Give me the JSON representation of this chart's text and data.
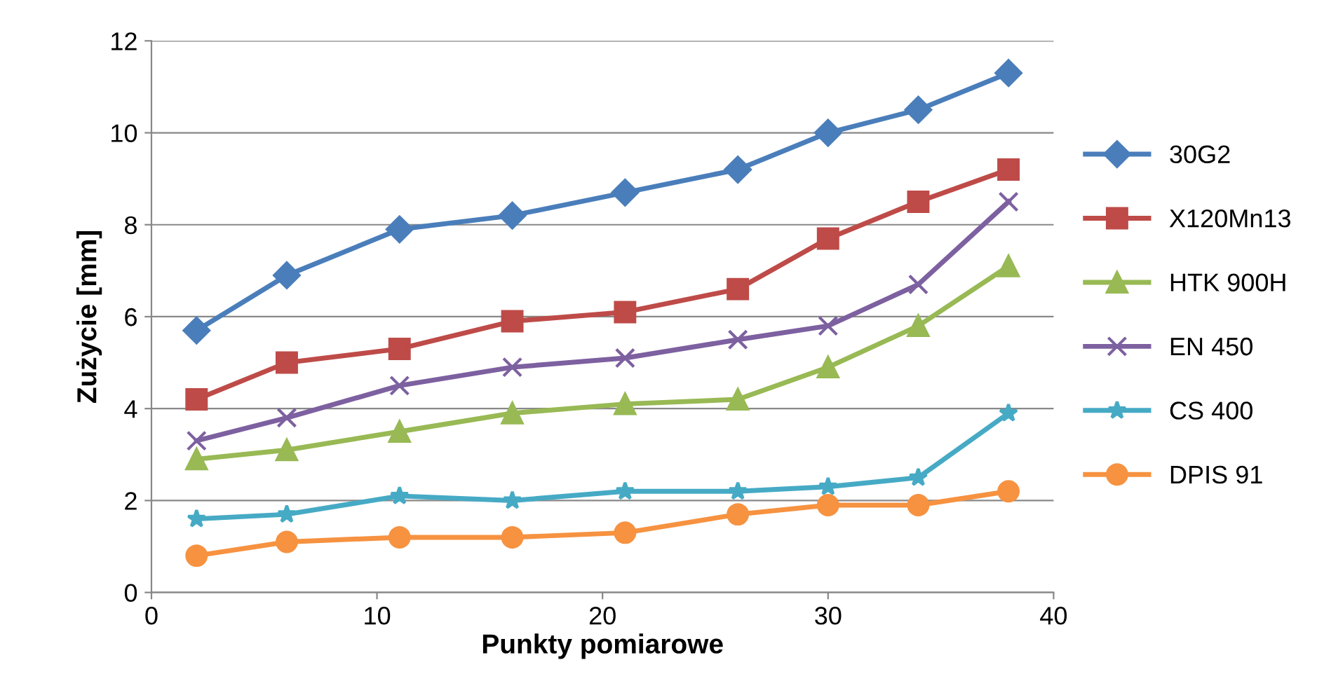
{
  "chart_data": {
    "type": "line",
    "xlabel": "Punkty pomiarowe",
    "ylabel": "Zużycie [mm]",
    "x": [
      2,
      6,
      11,
      16,
      21,
      26,
      30,
      34,
      38
    ],
    "xlim": [
      0,
      40
    ],
    "xticks": [
      0,
      10,
      20,
      30,
      40
    ],
    "ylim": [
      0,
      12
    ],
    "yticks": [
      0,
      2,
      4,
      6,
      8,
      10,
      12
    ],
    "grid": "y",
    "legend": "right",
    "series": [
      {
        "name": "30G2",
        "color": "#4a7ebb",
        "marker": "diamond",
        "values": [
          5.7,
          6.9,
          7.9,
          8.2,
          8.7,
          9.2,
          10.0,
          10.5,
          11.3
        ]
      },
      {
        "name": "X120Mn13",
        "color": "#be4b48",
        "marker": "square",
        "values": [
          4.2,
          5.0,
          5.3,
          5.9,
          6.1,
          6.6,
          7.7,
          8.5,
          9.2
        ]
      },
      {
        "name": "HTK 900H",
        "color": "#98b954",
        "marker": "triangle",
        "values": [
          2.9,
          3.1,
          3.5,
          3.9,
          4.1,
          4.2,
          4.9,
          5.8,
          7.1
        ]
      },
      {
        "name": "EN 450",
        "color": "#7d60a0",
        "marker": "cross",
        "values": [
          3.3,
          3.8,
          4.5,
          4.9,
          5.1,
          5.5,
          5.8,
          6.7,
          8.5
        ]
      },
      {
        "name": "CS 400",
        "color": "#46aac5",
        "marker": "star",
        "values": [
          1.6,
          1.7,
          2.1,
          2.0,
          2.2,
          2.2,
          2.3,
          2.5,
          3.9
        ]
      },
      {
        "name": "DPIS 91",
        "color": "#f69240",
        "marker": "circle",
        "values": [
          0.8,
          1.1,
          1.2,
          1.2,
          1.3,
          1.7,
          1.9,
          1.9,
          2.2
        ]
      }
    ]
  }
}
